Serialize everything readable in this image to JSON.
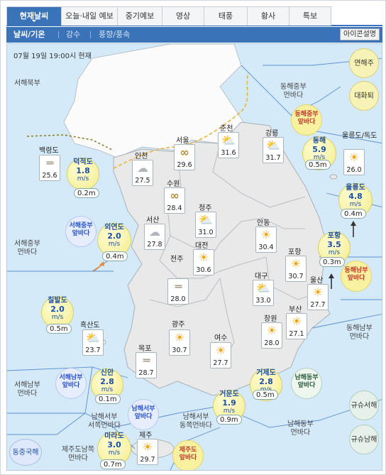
{
  "tabs": [
    "현재날씨",
    "오늘·내일 예보",
    "중기예보",
    "영상",
    "태풍",
    "황사",
    "특보"
  ],
  "subtabs": [
    "날씨/기온",
    "강수",
    "풍향/풍속"
  ],
  "icon_desc_label": "아이콘설명",
  "datetime": "07월 19일 19:00시 현재",
  "side_buttons": {
    "yeon": "연해주",
    "dae": "대화퇴",
    "gyusu1": "규슈서해",
    "gyusu2": "규슈남해",
    "dongjung": "동중국해"
  },
  "sea_regions": {
    "seohae_bukbu": "서해북부",
    "seohae_jungbu": "서해중부\n먼바다",
    "seohae_nambu": "서해남부\n먼바다",
    "namhae_seobu": "남해서부\n서쪽먼바다",
    "namhae_seobu_dong": "남해서부\n동쪽먼바다",
    "namhae_dongbu": "남해동부\n먼바다",
    "donghae_jungbu": "동해중부\n먼바다",
    "donghae_nambu": "동해남부\n먼바다",
    "jeju_nam": "제주도남쪽\n먼바다"
  },
  "badges": {
    "donghae_jungbu_ap": "동해중부\n앞바다",
    "seohae_jungbu_ap": "서해중부\n앞바다",
    "seohae_nambu_ap": "서해남부\n앞바다",
    "namhae_seobu_ap": "남해서부\n앞바다",
    "namhae_dongbu_ap": "남해동부\n앞바다",
    "donghae_nambu_ap": "동해남부\n앞바다",
    "jeju_ap": "제주도\n앞바다"
  },
  "cities": [
    {
      "name": "서울",
      "temp": "29.6",
      "icon": "haze"
    },
    {
      "name": "춘천",
      "temp": "31.6",
      "icon": "sun-cloud"
    },
    {
      "name": "강릉",
      "temp": "31.7",
      "icon": "sun-cloud"
    },
    {
      "name": "인천",
      "temp": "27.5",
      "icon": "cloud"
    },
    {
      "name": "수원",
      "temp": "28.4",
      "icon": "haze"
    },
    {
      "name": "청주",
      "temp": "31.0",
      "icon": "sun-cloud"
    },
    {
      "name": "서산",
      "temp": "27.8",
      "icon": "cloud"
    },
    {
      "name": "대전",
      "temp": "30.6",
      "icon": "sun"
    },
    {
      "name": "안동",
      "temp": "30.4",
      "icon": "sun"
    },
    {
      "name": "포항",
      "temp": "30.7",
      "icon": "sun"
    },
    {
      "name": "대구",
      "temp": "33.0",
      "icon": "sun-cloud"
    },
    {
      "name": "울산",
      "temp": "27.7",
      "icon": "sun"
    },
    {
      "name": "전주",
      "temp": "28.0",
      "icon": "fog"
    },
    {
      "name": "흑산도",
      "temp": "23.7",
      "icon": "sun-cloud"
    },
    {
      "name": "광주",
      "temp": "30.7",
      "icon": "sun"
    },
    {
      "name": "목포",
      "temp": "28.7",
      "icon": "fog"
    },
    {
      "name": "여수",
      "temp": "27.7",
      "icon": "sun"
    },
    {
      "name": "창원",
      "temp": "28.0",
      "icon": "sun"
    },
    {
      "name": "부산",
      "temp": "27.1",
      "icon": "sun"
    },
    {
      "name": "울릉도/독도",
      "temp": "26.0",
      "icon": "sun"
    },
    {
      "name": "제주",
      "temp": "29.7",
      "icon": "sun"
    },
    {
      "name": "백령도",
      "temp": "25.6",
      "icon": "fog"
    }
  ],
  "buoys": [
    {
      "name": "덕적도",
      "wind": "1.8",
      "unit": "m/s",
      "wave": "0.2m"
    },
    {
      "name": "외연도",
      "wind": "2.0",
      "unit": "m/s",
      "wave": "0.4m"
    },
    {
      "name": "칠발도",
      "wind": "2.0",
      "unit": "m/s",
      "wave": "0.5m"
    },
    {
      "name": "신안",
      "wind": "2.8",
      "unit": "m/s",
      "wave": "0.1m"
    },
    {
      "name": "마라도",
      "wind": "3.0",
      "unit": "m/s",
      "wave": "0.7m"
    },
    {
      "name": "거문도",
      "wind": "1.9",
      "unit": "m/s",
      "wave": "0.9m"
    },
    {
      "name": "거제도",
      "wind": "2.8",
      "unit": "m/s",
      "wave": "0.5m"
    },
    {
      "name": "동해",
      "wind": "5.9",
      "unit": "m/s",
      "wave": "0.5m"
    },
    {
      "name": "울릉도",
      "wind": "4.8",
      "unit": "m/s",
      "wave": "0.4m"
    },
    {
      "name": "포항",
      "wind": "3.5",
      "unit": "m/s",
      "wave": "0.3m"
    }
  ]
}
